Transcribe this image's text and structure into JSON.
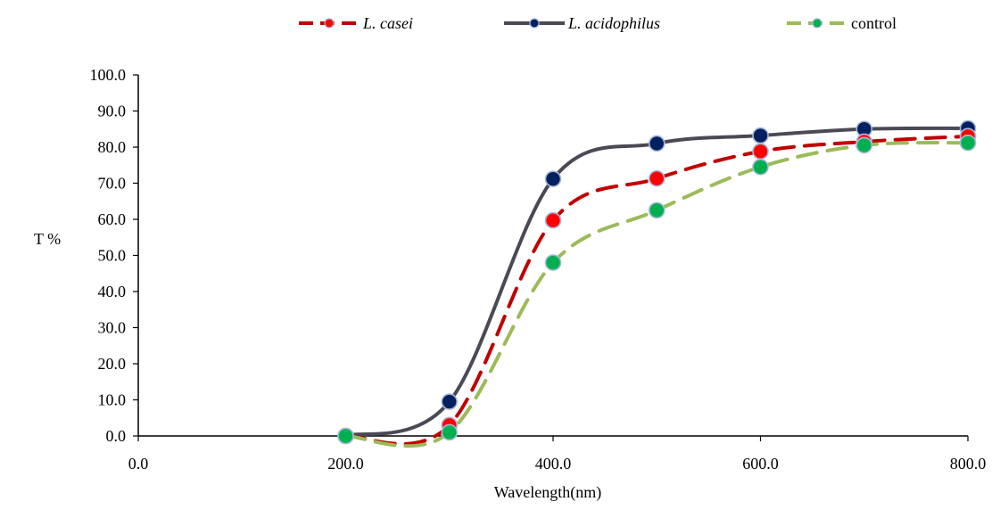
{
  "chart_data": {
    "type": "scatter",
    "title": "",
    "xlabel": "Wavelength(nm)",
    "ylabel": "T %",
    "xlim": [
      0,
      800
    ],
    "ylim": [
      0,
      100
    ],
    "x_ticks": [
      "0.0",
      "200.0",
      "400.0",
      "600.0",
      "800.0"
    ],
    "y_ticks": [
      "0.0",
      "10.0",
      "20.0",
      "30.0",
      "40.0",
      "50.0",
      "60.0",
      "70.0",
      "80.0",
      "90.0",
      "100.0"
    ],
    "grid": false,
    "legend_position": "top",
    "series": [
      {
        "name": "L. casei",
        "italic": true,
        "color": "#c00000",
        "marker_color": "#ff0000",
        "line_style": "dashed",
        "x": [
          200,
          300,
          400,
          500,
          600,
          700,
          800
        ],
        "y": [
          0.0,
          3.0,
          59.7,
          71.3,
          78.8,
          81.5,
          83.0
        ]
      },
      {
        "name": "L. acidophilus",
        "italic": true,
        "color": "#4a4a55",
        "marker_color": "#002060",
        "line_style": "solid",
        "x": [
          200,
          300,
          400,
          500,
          600,
          700,
          800
        ],
        "y": [
          0.0,
          9.5,
          71.2,
          81.0,
          83.2,
          85.0,
          85.2
        ]
      },
      {
        "name": "control",
        "italic": false,
        "color": "#9bbb59",
        "marker_color": "#00b050",
        "line_style": "dashed",
        "x": [
          200,
          300,
          400,
          500,
          600,
          700,
          800
        ],
        "y": [
          0.0,
          1.0,
          48.0,
          62.5,
          74.5,
          80.5,
          81.2
        ]
      }
    ]
  }
}
